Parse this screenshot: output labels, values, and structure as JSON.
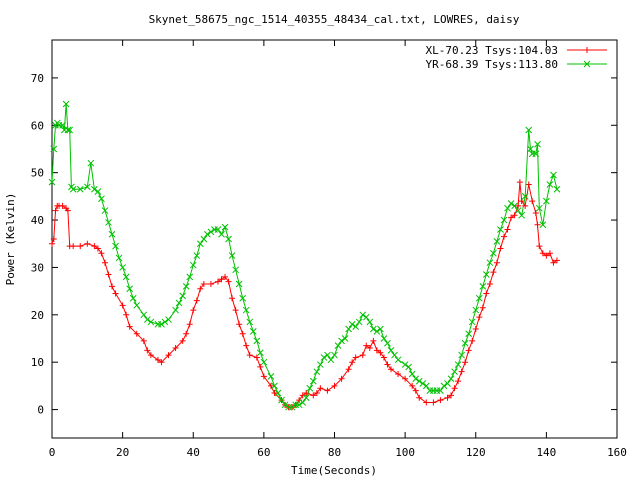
{
  "chart_data": {
    "type": "line",
    "title": "Skynet_58675_ngc_1514_40355_48434_cal.txt, LOWRES, daisy",
    "xlabel": "Time(Seconds)",
    "ylabel": "Power (Kelvin)",
    "xlim": [
      0,
      160
    ],
    "ylim": [
      -6,
      78
    ],
    "xticks": [
      0,
      20,
      40,
      60,
      80,
      100,
      120,
      140,
      160
    ],
    "yticks": [
      0,
      10,
      20,
      30,
      40,
      50,
      60,
      70
    ],
    "grid": false,
    "legend_position": "top-right",
    "series": [
      {
        "name": "XL-70.23 Tsys:104.03",
        "color": "#ff0000",
        "marker": "plus",
        "points": [
          [
            0,
            35
          ],
          [
            0.5,
            36
          ],
          [
            1,
            42
          ],
          [
            1.5,
            43
          ],
          [
            2,
            43
          ],
          [
            3,
            43
          ],
          [
            4,
            42.5
          ],
          [
            4.5,
            42
          ],
          [
            5,
            34.5
          ],
          [
            6,
            34.5
          ],
          [
            8,
            34.5
          ],
          [
            10,
            35
          ],
          [
            12,
            34.5
          ],
          [
            13,
            34
          ],
          [
            14,
            33
          ],
          [
            15,
            31
          ],
          [
            16,
            28.5
          ],
          [
            17,
            26
          ],
          [
            18,
            24.5
          ],
          [
            20,
            22
          ],
          [
            21,
            20
          ],
          [
            22,
            17.5
          ],
          [
            24,
            16
          ],
          [
            26,
            14.5
          ],
          [
            27,
            12.5
          ],
          [
            28,
            11.5
          ],
          [
            30,
            10.5
          ],
          [
            31,
            10
          ],
          [
            33,
            11.5
          ],
          [
            35,
            13
          ],
          [
            37,
            14.5
          ],
          [
            38,
            16
          ],
          [
            39,
            18
          ],
          [
            40,
            21
          ],
          [
            41,
            23
          ],
          [
            42,
            25.5
          ],
          [
            43,
            26.5
          ],
          [
            45,
            26.5
          ],
          [
            47,
            27
          ],
          [
            48,
            27.5
          ],
          [
            49,
            28
          ],
          [
            50,
            27
          ],
          [
            51,
            23.5
          ],
          [
            52,
            21
          ],
          [
            53,
            18
          ],
          [
            54,
            16
          ],
          [
            55,
            13.5
          ],
          [
            56,
            11.5
          ],
          [
            58,
            11
          ],
          [
            59,
            9
          ],
          [
            60,
            7
          ],
          [
            62,
            5
          ],
          [
            63,
            3.5
          ],
          [
            65,
            2
          ],
          [
            66,
            1
          ],
          [
            67,
            0.5
          ],
          [
            68,
            0.5
          ],
          [
            69,
            1
          ],
          [
            70,
            2
          ],
          [
            71,
            3
          ],
          [
            72,
            3.5
          ],
          [
            74,
            3
          ],
          [
            75,
            3.5
          ],
          [
            76,
            4.5
          ],
          [
            78,
            4
          ],
          [
            80,
            5
          ],
          [
            82,
            6.5
          ],
          [
            84,
            8.5
          ],
          [
            85,
            10
          ],
          [
            86,
            11
          ],
          [
            88,
            11.5
          ],
          [
            89,
            13.5
          ],
          [
            90,
            13
          ],
          [
            91,
            14.5
          ],
          [
            92,
            12.5
          ],
          [
            93,
            12
          ],
          [
            94,
            11
          ],
          [
            95,
            9.5
          ],
          [
            96,
            8.5
          ],
          [
            98,
            7.5
          ],
          [
            100,
            6.5
          ],
          [
            102,
            5
          ],
          [
            103,
            4
          ],
          [
            104,
            2.5
          ],
          [
            106,
            1.5
          ],
          [
            108,
            1.5
          ],
          [
            110,
            2
          ],
          [
            112,
            2.5
          ],
          [
            113,
            3
          ],
          [
            114,
            4.5
          ],
          [
            115,
            6
          ],
          [
            116,
            8
          ],
          [
            117,
            10
          ],
          [
            118,
            12.5
          ],
          [
            119,
            14.5
          ],
          [
            120,
            17
          ],
          [
            121,
            19.5
          ],
          [
            122,
            21.5
          ],
          [
            123,
            24.5
          ],
          [
            124,
            26.5
          ],
          [
            125,
            29
          ],
          [
            126,
            31
          ],
          [
            127,
            34
          ],
          [
            128,
            36.5
          ],
          [
            129,
            38
          ],
          [
            130,
            40.5
          ],
          [
            131,
            41
          ],
          [
            132,
            43
          ],
          [
            132.5,
            48
          ],
          [
            133,
            44
          ],
          [
            134,
            43
          ],
          [
            135,
            47.5
          ],
          [
            136,
            44
          ],
          [
            137,
            41.5
          ],
          [
            137.5,
            39
          ],
          [
            138,
            34.5
          ],
          [
            139,
            33
          ],
          [
            140,
            32.5
          ],
          [
            141,
            33
          ],
          [
            142,
            31
          ],
          [
            143,
            31.5
          ]
        ]
      },
      {
        "name": "YR-68.39 Tsys:113.80",
        "color": "#00c000",
        "marker": "x",
        "points": [
          [
            0,
            48
          ],
          [
            0.5,
            55
          ],
          [
            1,
            60
          ],
          [
            1.5,
            60.5
          ],
          [
            2,
            60
          ],
          [
            3,
            60
          ],
          [
            3.5,
            59
          ],
          [
            4,
            64.5
          ],
          [
            4.5,
            59
          ],
          [
            5,
            59
          ],
          [
            5.5,
            47
          ],
          [
            6,
            46.5
          ],
          [
            8,
            46.5
          ],
          [
            10,
            47
          ],
          [
            11,
            52
          ],
          [
            12,
            46.5
          ],
          [
            13,
            46
          ],
          [
            14,
            44.5
          ],
          [
            15,
            42
          ],
          [
            16,
            39.5
          ],
          [
            17,
            37
          ],
          [
            18,
            34.5
          ],
          [
            19,
            32
          ],
          [
            20,
            30
          ],
          [
            21,
            28
          ],
          [
            22,
            25.5
          ],
          [
            23,
            23.5
          ],
          [
            24,
            22
          ],
          [
            26,
            20
          ],
          [
            27,
            19
          ],
          [
            28,
            18.5
          ],
          [
            30,
            18
          ],
          [
            31,
            18
          ],
          [
            32,
            18.5
          ],
          [
            33,
            19
          ],
          [
            35,
            21
          ],
          [
            36,
            22.5
          ],
          [
            37,
            24
          ],
          [
            38,
            26
          ],
          [
            39,
            28
          ],
          [
            40,
            30.5
          ],
          [
            41,
            32.5
          ],
          [
            42,
            35
          ],
          [
            43,
            36
          ],
          [
            44,
            37
          ],
          [
            45,
            37.5
          ],
          [
            46,
            38
          ],
          [
            47,
            38
          ],
          [
            48,
            37
          ],
          [
            49,
            38.5
          ],
          [
            50,
            36
          ],
          [
            51,
            32.5
          ],
          [
            52,
            29.5
          ],
          [
            53,
            26.5
          ],
          [
            54,
            23.5
          ],
          [
            55,
            21
          ],
          [
            56,
            18.5
          ],
          [
            57,
            16.5
          ],
          [
            58,
            14.5
          ],
          [
            59,
            12
          ],
          [
            60,
            10
          ],
          [
            62,
            7
          ],
          [
            63,
            5
          ],
          [
            64,
            3.5
          ],
          [
            65,
            2
          ],
          [
            66,
            1
          ],
          [
            67,
            0.5
          ],
          [
            68,
            0.5
          ],
          [
            69,
            1
          ],
          [
            70,
            1
          ],
          [
            71,
            1.5
          ],
          [
            72,
            2.5
          ],
          [
            73,
            4.5
          ],
          [
            74,
            6
          ],
          [
            75,
            8
          ],
          [
            76,
            9.5
          ],
          [
            77,
            11
          ],
          [
            78,
            11.5
          ],
          [
            79,
            10.5
          ],
          [
            80,
            11.5
          ],
          [
            81,
            13.5
          ],
          [
            82,
            14.5
          ],
          [
            83,
            15
          ],
          [
            84,
            17
          ],
          [
            85,
            18
          ],
          [
            86,
            17.5
          ],
          [
            87,
            18.5
          ],
          [
            88,
            20
          ],
          [
            89,
            19.5
          ],
          [
            90,
            18.5
          ],
          [
            91,
            17
          ],
          [
            92,
            16.5
          ],
          [
            93,
            17
          ],
          [
            94,
            15
          ],
          [
            95,
            14
          ],
          [
            96,
            12.5
          ],
          [
            97,
            11.5
          ],
          [
            98,
            10.5
          ],
          [
            100,
            9.5
          ],
          [
            101,
            9
          ],
          [
            102,
            7.5
          ],
          [
            103,
            6.5
          ],
          [
            104,
            6
          ],
          [
            105,
            5.5
          ],
          [
            106,
            5
          ],
          [
            107,
            4
          ],
          [
            108,
            4
          ],
          [
            109,
            4
          ],
          [
            110,
            4
          ],
          [
            111,
            5
          ],
          [
            112,
            5.5
          ],
          [
            113,
            6.5
          ],
          [
            114,
            8
          ],
          [
            115,
            9.5
          ],
          [
            116,
            11.5
          ],
          [
            117,
            14
          ],
          [
            118,
            16
          ],
          [
            119,
            18.5
          ],
          [
            120,
            21
          ],
          [
            121,
            23.5
          ],
          [
            122,
            26
          ],
          [
            123,
            28.5
          ],
          [
            124,
            31
          ],
          [
            125,
            33
          ],
          [
            126,
            35.5
          ],
          [
            127,
            38
          ],
          [
            128,
            40
          ],
          [
            129,
            42.5
          ],
          [
            130,
            43.5
          ],
          [
            131,
            43
          ],
          [
            132,
            42
          ],
          [
            133,
            41
          ],
          [
            134,
            45
          ],
          [
            135,
            59
          ],
          [
            135.5,
            55
          ],
          [
            136,
            54
          ],
          [
            137,
            54
          ],
          [
            137.5,
            56
          ],
          [
            138,
            42.5
          ],
          [
            139,
            39
          ],
          [
            140,
            44
          ],
          [
            141,
            47.5
          ],
          [
            142,
            49.5
          ],
          [
            143,
            46.5
          ]
        ]
      }
    ]
  }
}
